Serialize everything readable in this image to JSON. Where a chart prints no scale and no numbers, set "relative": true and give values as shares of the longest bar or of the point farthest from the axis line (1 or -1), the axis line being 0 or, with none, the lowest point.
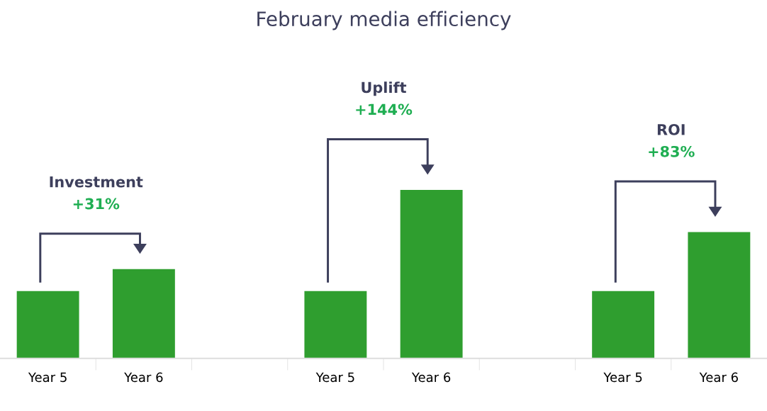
{
  "chart_data": {
    "type": "bar",
    "title": "February media efficiency",
    "relative": true,
    "categories": [
      "Year 5",
      "Year 6",
      null,
      "Year 5",
      "Year 6",
      null,
      "Year 5",
      "Year 6"
    ],
    "values": [
      0.4,
      0.53,
      null,
      0.4,
      1,
      null,
      0.4,
      0.75
    ],
    "color": "#2f9e2f",
    "annotations": [
      "Investment",
      "+31%",
      "Uplift",
      "+144%",
      "ROI",
      "+83%"
    ],
    "grid": false,
    "legend": false
  }
}
